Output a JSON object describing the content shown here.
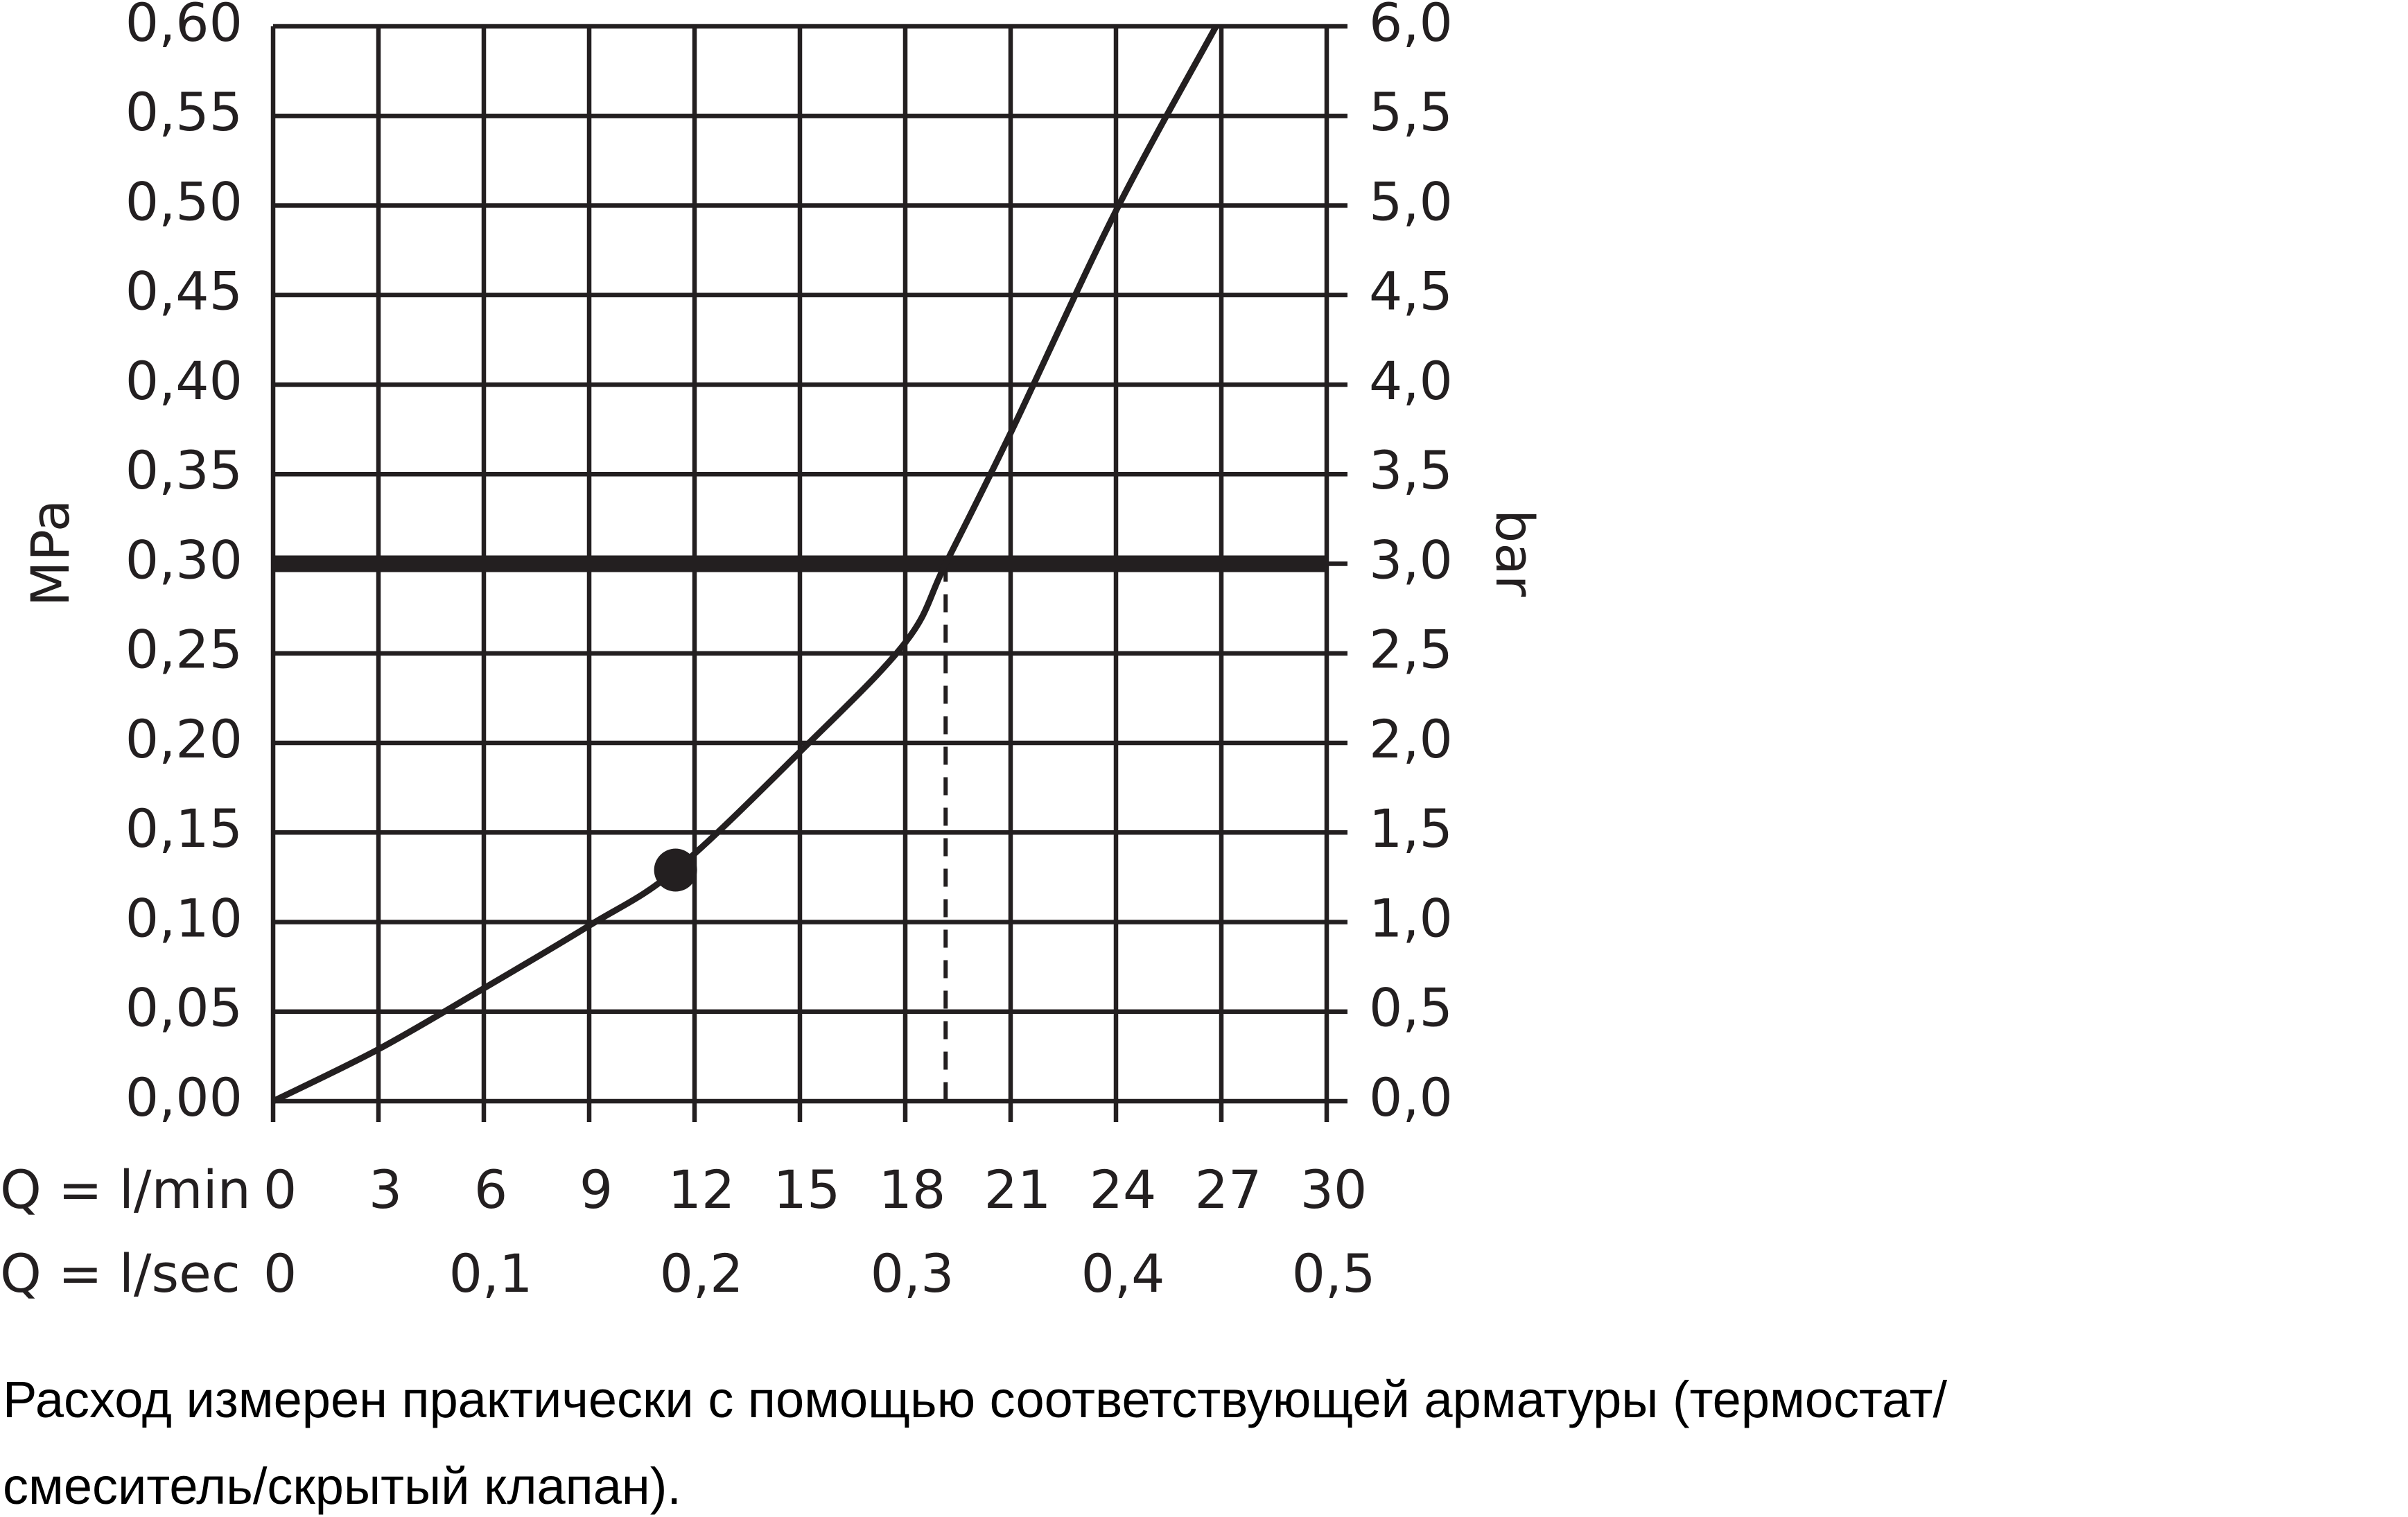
{
  "chart_data": {
    "type": "line",
    "ylabel": "MPa",
    "y2label": "bar",
    "xlabel": "Q = l/min",
    "x2label": "Q = l/sec",
    "xlim": [
      0,
      30
    ],
    "xticks": [
      0,
      3,
      6,
      9,
      12,
      15,
      18,
      21,
      24,
      27,
      30
    ],
    "x2lim": [
      0,
      0.5
    ],
    "x2ticks": [
      0,
      {
        "value": 0.1,
        "label": "0,1"
      },
      {
        "value": 0.2,
        "label": "0,2"
      },
      {
        "value": 0.3,
        "label": "0,3"
      },
      {
        "value": 0.4,
        "label": "0,4"
      },
      {
        "value": 0.5,
        "label": "0,5"
      }
    ],
    "ylim": [
      0,
      0.6
    ],
    "yticks": [
      {
        "value": 0,
        "label": "0,00"
      },
      {
        "value": 0.05,
        "label": "0,05"
      },
      {
        "value": 0.1,
        "label": "0,10"
      },
      {
        "value": 0.15,
        "label": "0,15"
      },
      {
        "value": 0.2,
        "label": "0,20"
      },
      {
        "value": 0.25,
        "label": "0,25"
      },
      {
        "value": 0.3,
        "label": "0,30"
      },
      {
        "value": 0.35,
        "label": "0,35"
      },
      {
        "value": 0.4,
        "label": "0,40"
      },
      {
        "value": 0.45,
        "label": "0,45"
      },
      {
        "value": 0.5,
        "label": "0,50"
      },
      {
        "value": 0.55,
        "label": "0,55"
      },
      {
        "value": 0.6,
        "label": "0,60"
      }
    ],
    "y2lim": [
      0,
      6
    ],
    "y2ticks": [
      {
        "value": 0,
        "label": "0,0"
      },
      {
        "value": 0.5,
        "label": "0,5"
      },
      {
        "value": 1,
        "label": "1,0"
      },
      {
        "value": 1.5,
        "label": "1,5"
      },
      {
        "value": 2,
        "label": "2,0"
      },
      {
        "value": 2.5,
        "label": "2,5"
      },
      {
        "value": 3,
        "label": "3,0"
      },
      {
        "value": 3.5,
        "label": "3,5"
      },
      {
        "value": 4,
        "label": "4,0"
      },
      {
        "value": 4.5,
        "label": "4,5"
      },
      {
        "value": 5,
        "label": "5,0"
      },
      {
        "value": 5.5,
        "label": "5,5"
      },
      {
        "value": 6,
        "label": "6,0"
      }
    ],
    "grid": true,
    "series": [
      {
        "color": "#231f20",
        "x": [
          0,
          3,
          6,
          9,
          11.46,
          15,
          18,
          19.15,
          21,
          24,
          26.85
        ],
        "values": [
          0,
          0.029,
          0.063,
          0.098,
          0.129,
          0.195,
          0.256,
          0.3,
          0.373,
          0.497,
          0.6
        ]
      }
    ],
    "points": [
      {
        "x": 11.46,
        "y": 0.129
      }
    ],
    "hlines": [
      {
        "y": 0.3
      }
    ],
    "vlines": [
      {
        "x": 19.15
      }
    ],
    "caption": [
      "Расход измерен практически с помощью соответствующей арматуры (термостат/",
      "смеситель/скрытый клапан)."
    ]
  }
}
